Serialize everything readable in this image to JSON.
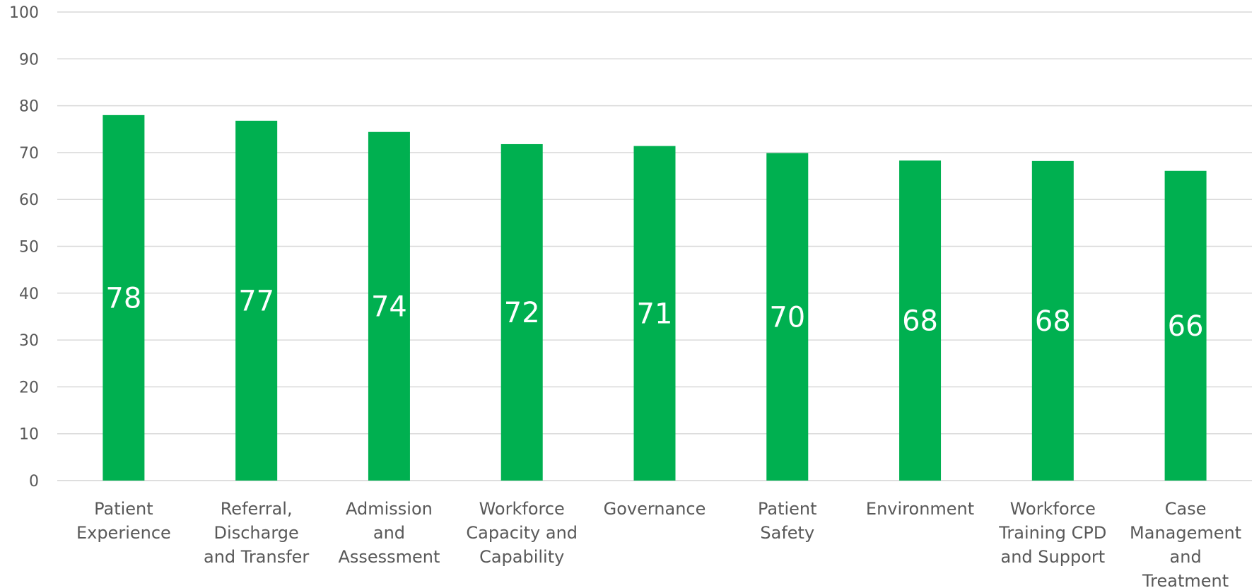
{
  "chart_data": {
    "type": "bar",
    "categories": [
      [
        "Patient",
        "Experience"
      ],
      [
        "Referral,",
        "Discharge",
        "and Transfer"
      ],
      [
        "Admission",
        "and",
        "Assessment"
      ],
      [
        "Workforce",
        "Capacity and",
        "Capability"
      ],
      [
        "Governance"
      ],
      [
        "Patient",
        "Safety"
      ],
      [
        "Environment"
      ],
      [
        "Workforce",
        "Training CPD",
        "and Support"
      ],
      [
        "Case",
        "Management",
        "and",
        "Treatment"
      ]
    ],
    "values": [
      78,
      76.8,
      74.4,
      71.8,
      71.4,
      69.9,
      68.3,
      68.2,
      66.1
    ],
    "data_labels": [
      "78",
      "77",
      "74",
      "72",
      "71",
      "70",
      "68",
      "68",
      "66"
    ],
    "yticks": [
      "0",
      "10",
      "20",
      "30",
      "40",
      "50",
      "60",
      "70",
      "80",
      "90",
      "100"
    ],
    "ylim": [
      0,
      100
    ],
    "grid": true,
    "bar_color": "#00B050",
    "grid_color": "#D9D9D9"
  }
}
